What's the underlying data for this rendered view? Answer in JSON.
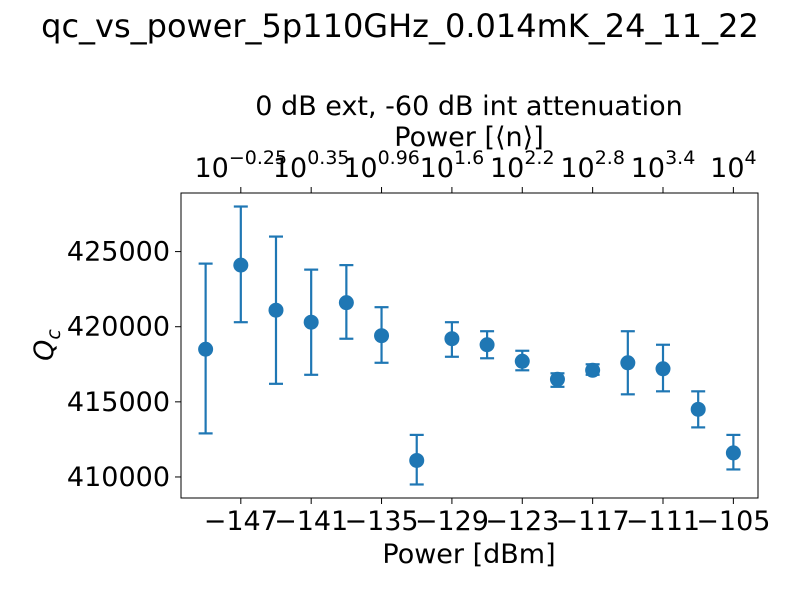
{
  "chart_data": {
    "type": "scatter",
    "title": "qc_vs_power_5p110GHz_0.014mK_24_11_22",
    "subtitle_lines": [
      "0 dB ext, -60 dB int attenuation",
      "Power [⟨n⟩]"
    ],
    "xlabel": "Power [dBm]",
    "ylabel_base": "Q",
    "ylabel_sub": "c",
    "xlim": [
      -152.1,
      -102.9
    ],
    "ylim": [
      408600,
      428900
    ],
    "x_ticks": [
      -147,
      -141,
      -135,
      -129,
      -123,
      -117,
      -111,
      -105
    ],
    "x_tick_labels": [
      "−147",
      "−141",
      "−135",
      "−129",
      "−123",
      "−117",
      "−111",
      "−105"
    ],
    "y_ticks": [
      410000,
      415000,
      420000,
      425000
    ],
    "y_tick_labels": [
      "410000",
      "415000",
      "420000",
      "425000"
    ],
    "top_ticks": [
      {
        "x": -147,
        "base": "10",
        "exp": "−0.25"
      },
      {
        "x": -141,
        "base": "10",
        "exp": "0.35"
      },
      {
        "x": -135,
        "base": "10",
        "exp": "0.96"
      },
      {
        "x": -129,
        "base": "10",
        "exp": "1.6"
      },
      {
        "x": -123,
        "base": "10",
        "exp": "2.2"
      },
      {
        "x": -117,
        "base": "10",
        "exp": "2.8"
      },
      {
        "x": -111,
        "base": "10",
        "exp": "3.4"
      },
      {
        "x": -105,
        "base": "10",
        "exp": "4"
      }
    ],
    "grid": false,
    "color": "#1f77b4",
    "series": [
      {
        "points": [
          {
            "x": -150,
            "y": 418500,
            "err_low": 412900,
            "err_high": 424200
          },
          {
            "x": -147,
            "y": 424100,
            "err_low": 420300,
            "err_high": 428000
          },
          {
            "x": -144,
            "y": 421100,
            "err_low": 416200,
            "err_high": 426000
          },
          {
            "x": -141,
            "y": 420300,
            "err_low": 416800,
            "err_high": 423800
          },
          {
            "x": -138,
            "y": 421600,
            "err_low": 419200,
            "err_high": 424100
          },
          {
            "x": -135,
            "y": 419400,
            "err_low": 417600,
            "err_high": 421300
          },
          {
            "x": -132,
            "y": 411100,
            "err_low": 409500,
            "err_high": 412800
          },
          {
            "x": -129,
            "y": 419200,
            "err_low": 418000,
            "err_high": 420300
          },
          {
            "x": -126,
            "y": 418800,
            "err_low": 417900,
            "err_high": 419700
          },
          {
            "x": -123,
            "y": 417700,
            "err_low": 417100,
            "err_high": 418400
          },
          {
            "x": -120,
            "y": 416500,
            "err_low": 416000,
            "err_high": 416900
          },
          {
            "x": -117,
            "y": 417100,
            "err_low": 416800,
            "err_high": 417500
          },
          {
            "x": -114,
            "y": 417600,
            "err_low": 415500,
            "err_high": 419700
          },
          {
            "x": -111,
            "y": 417200,
            "err_low": 415700,
            "err_high": 418800
          },
          {
            "x": -108,
            "y": 414500,
            "err_low": 413300,
            "err_high": 415700
          },
          {
            "x": -105,
            "y": 411600,
            "err_low": 410500,
            "err_high": 412800
          }
        ]
      }
    ]
  }
}
